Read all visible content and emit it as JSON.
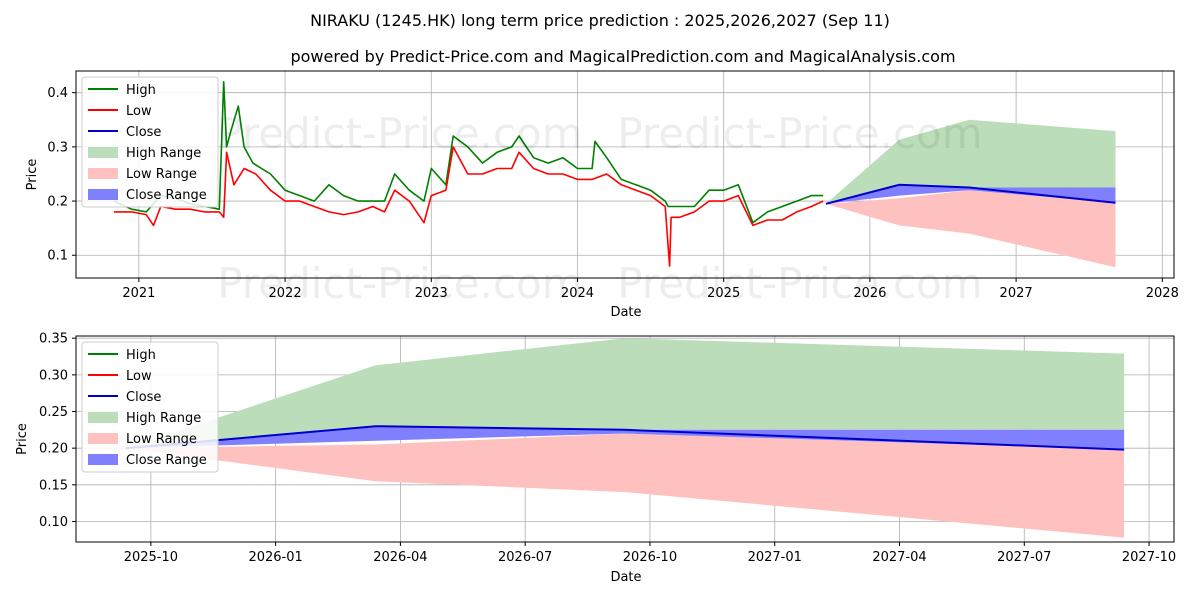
{
  "chart_data": [
    {
      "type": "line",
      "title": "NIRAKU (1245.HK) long term price prediction : 2025,2026,2027 (Sep 11)",
      "subtitle": "powered by Predict-Price.com and MagicalPrediction.com and MagicalAnalysis.com",
      "watermark": "Predict-Price.com",
      "xlabel": "Date",
      "ylabel": "Price",
      "xlim": [
        2020.57,
        2028.08
      ],
      "ylim": [
        0.058,
        0.44
      ],
      "x_ticks": [
        {
          "value": 2021,
          "label": "2021"
        },
        {
          "value": 2022,
          "label": "2022"
        },
        {
          "value": 2023,
          "label": "2023"
        },
        {
          "value": 2024,
          "label": "2024"
        },
        {
          "value": 2025,
          "label": "2025"
        },
        {
          "value": 2026,
          "label": "2026"
        },
        {
          "value": 2027,
          "label": "2027"
        },
        {
          "value": 2028,
          "label": "2028"
        }
      ],
      "y_ticks": [
        {
          "value": 0.1,
          "label": "0.1"
        },
        {
          "value": 0.2,
          "label": "0.2"
        },
        {
          "value": 0.3,
          "label": "0.3"
        },
        {
          "value": 0.4,
          "label": "0.4"
        }
      ],
      "grid": true,
      "legend_position": "top-left",
      "series": [
        {
          "name": "High",
          "color": "#008000",
          "x": [
            2020.83,
            2020.95,
            2021.05,
            2021.15,
            2021.25,
            2021.35,
            2021.45,
            2021.55,
            2021.58,
            2021.6,
            2021.63,
            2021.68,
            2021.72,
            2021.78,
            2021.9,
            2022.0,
            2022.1,
            2022.2,
            2022.3,
            2022.4,
            2022.5,
            2022.6,
            2022.68,
            2022.75,
            2022.85,
            2022.95,
            2023.0,
            2023.1,
            2023.15,
            2023.25,
            2023.35,
            2023.45,
            2023.55,
            2023.6,
            2023.7,
            2023.8,
            2023.9,
            2024.0,
            2024.1,
            2024.12,
            2024.2,
            2024.3,
            2024.4,
            2024.5,
            2024.6,
            2024.62,
            2024.7,
            2024.8,
            2024.9,
            2025.0,
            2025.1,
            2025.2,
            2025.3,
            2025.4,
            2025.5,
            2025.6,
            2025.68
          ],
          "values": [
            0.2,
            0.185,
            0.18,
            0.21,
            0.205,
            0.195,
            0.19,
            0.185,
            0.42,
            0.3,
            0.33,
            0.375,
            0.3,
            0.27,
            0.25,
            0.22,
            0.21,
            0.2,
            0.23,
            0.21,
            0.2,
            0.2,
            0.2,
            0.25,
            0.22,
            0.2,
            0.26,
            0.23,
            0.32,
            0.3,
            0.27,
            0.29,
            0.3,
            0.32,
            0.28,
            0.27,
            0.28,
            0.26,
            0.26,
            0.31,
            0.28,
            0.24,
            0.23,
            0.22,
            0.2,
            0.19,
            0.19,
            0.19,
            0.22,
            0.22,
            0.23,
            0.16,
            0.18,
            0.19,
            0.2,
            0.21,
            0.21
          ]
        },
        {
          "name": "Low",
          "color": "#ff0000",
          "x": [
            2020.83,
            2020.95,
            2021.05,
            2021.1,
            2021.15,
            2021.25,
            2021.35,
            2021.45,
            2021.55,
            2021.58,
            2021.6,
            2021.65,
            2021.72,
            2021.8,
            2021.9,
            2022.0,
            2022.1,
            2022.2,
            2022.3,
            2022.4,
            2022.5,
            2022.6,
            2022.68,
            2022.75,
            2022.85,
            2022.95,
            2023.0,
            2023.1,
            2023.15,
            2023.25,
            2023.35,
            2023.45,
            2023.55,
            2023.6,
            2023.7,
            2023.8,
            2023.9,
            2024.0,
            2024.1,
            2024.2,
            2024.3,
            2024.4,
            2024.5,
            2024.6,
            2024.63,
            2024.64,
            2024.7,
            2024.8,
            2024.9,
            2025.0,
            2025.1,
            2025.2,
            2025.3,
            2025.4,
            2025.5,
            2025.6,
            2025.68
          ],
          "values": [
            0.18,
            0.18,
            0.175,
            0.155,
            0.19,
            0.185,
            0.185,
            0.18,
            0.18,
            0.17,
            0.29,
            0.23,
            0.26,
            0.25,
            0.22,
            0.2,
            0.2,
            0.19,
            0.18,
            0.175,
            0.18,
            0.19,
            0.18,
            0.22,
            0.2,
            0.16,
            0.21,
            0.22,
            0.3,
            0.25,
            0.25,
            0.26,
            0.26,
            0.29,
            0.26,
            0.25,
            0.25,
            0.24,
            0.24,
            0.25,
            0.23,
            0.22,
            0.21,
            0.19,
            0.08,
            0.17,
            0.17,
            0.18,
            0.2,
            0.2,
            0.21,
            0.155,
            0.165,
            0.165,
            0.18,
            0.19,
            0.2
          ]
        },
        {
          "name": "Close",
          "color": "#0000cd",
          "x": [
            2025.7,
            2026.2,
            2026.68,
            2027.68
          ],
          "values": [
            0.195,
            0.23,
            0.225,
            0.197
          ]
        },
        {
          "name": "High Range",
          "color": "#bcddb9",
          "x": [
            2025.7,
            2026.2,
            2026.68,
            2027.68
          ],
          "upper": [
            0.195,
            0.313,
            0.35,
            0.329
          ],
          "lower": [
            0.195,
            0.23,
            0.225,
            0.225
          ]
        },
        {
          "name": "Low Range",
          "color": "#ffc0c0",
          "x": [
            2025.7,
            2026.2,
            2026.68,
            2027.68
          ],
          "upper": [
            0.195,
            0.205,
            0.22,
            0.197
          ],
          "lower": [
            0.195,
            0.155,
            0.14,
            0.078
          ]
        },
        {
          "name": "Close Range",
          "color": "#8080ff",
          "x": [
            2025.7,
            2026.2,
            2026.68,
            2027.68
          ],
          "upper": [
            0.195,
            0.23,
            0.225,
            0.225
          ],
          "lower": [
            0.195,
            0.21,
            0.22,
            0.197
          ]
        }
      ]
    },
    {
      "type": "line",
      "xlabel": "Date",
      "ylabel": "Price",
      "xlim": [
        2025.6,
        2027.8
      ],
      "ylim": [
        0.072,
        0.353
      ],
      "x_ticks": [
        {
          "value": 2025.75,
          "label": "2025-10"
        },
        {
          "value": 2026.0,
          "label": "2026-01"
        },
        {
          "value": 2026.25,
          "label": "2026-04"
        },
        {
          "value": 2026.5,
          "label": "2026-07"
        },
        {
          "value": 2026.75,
          "label": "2026-10"
        },
        {
          "value": 2027.0,
          "label": "2027-01"
        },
        {
          "value": 2027.25,
          "label": "2027-04"
        },
        {
          "value": 2027.5,
          "label": "2027-07"
        },
        {
          "value": 2027.75,
          "label": "2027-10"
        }
      ],
      "y_ticks": [
        {
          "value": 0.1,
          "label": "0.10"
        },
        {
          "value": 0.15,
          "label": "0.15"
        },
        {
          "value": 0.2,
          "label": "0.20"
        },
        {
          "value": 0.25,
          "label": "0.25"
        },
        {
          "value": 0.3,
          "label": "0.30"
        },
        {
          "value": 0.35,
          "label": "0.35"
        }
      ],
      "grid": true,
      "legend_position": "top-left",
      "series": [
        {
          "name": "High",
          "color": "#008000",
          "x": [],
          "values": []
        },
        {
          "name": "Low",
          "color": "#ff0000",
          "x": [],
          "values": []
        },
        {
          "name": "Close",
          "color": "#0000cd",
          "x": [
            2025.7,
            2026.2,
            2026.7,
            2027.7
          ],
          "values": [
            0.2,
            0.23,
            0.225,
            0.198
          ]
        },
        {
          "name": "High Range",
          "color": "#bcddb9",
          "x": [
            2025.7,
            2026.2,
            2026.7,
            2027.7
          ],
          "upper": [
            0.2,
            0.313,
            0.35,
            0.329
          ],
          "lower": [
            0.2,
            0.23,
            0.225,
            0.225
          ]
        },
        {
          "name": "Low Range",
          "color": "#ffc0c0",
          "x": [
            2025.7,
            2026.2,
            2026.7,
            2027.7
          ],
          "upper": [
            0.2,
            0.205,
            0.22,
            0.198
          ],
          "lower": [
            0.2,
            0.155,
            0.14,
            0.078
          ]
        },
        {
          "name": "Close Range",
          "color": "#8080ff",
          "x": [
            2025.7,
            2026.2,
            2026.7,
            2027.7
          ],
          "upper": [
            0.2,
            0.23,
            0.225,
            0.225
          ],
          "lower": [
            0.2,
            0.21,
            0.22,
            0.198
          ]
        }
      ]
    }
  ]
}
